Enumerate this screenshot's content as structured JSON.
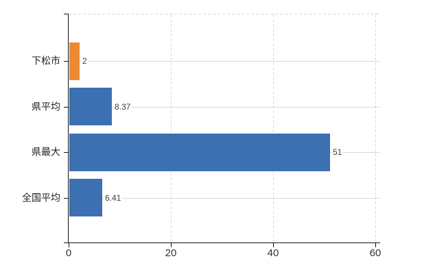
{
  "chart_data": {
    "type": "bar",
    "orientation": "horizontal",
    "title": "",
    "categories": [
      "下松市",
      "県平均",
      "県最大",
      "全国平均"
    ],
    "values": [
      2,
      8.37,
      51,
      6.41
    ],
    "value_labels": [
      "2",
      "8.37",
      "51",
      "6.41"
    ],
    "bar_colors": [
      "#EC8A33",
      "#3D6FB3",
      "#3D6FB3",
      "#3D6FB3"
    ],
    "xlim": [
      0,
      61.2
    ],
    "xticks": [
      0,
      20,
      40,
      60
    ],
    "xtick_labels": [
      "0",
      "20",
      "40",
      "60"
    ],
    "legend": null,
    "layout_hints": {
      "grid_vertical_dashed_at": [
        20,
        40,
        60
      ],
      "grid_horizontal_at_category_centers": true,
      "plot_top_border_dashed": true,
      "highlighted_category": "下松市"
    },
    "colors": {
      "highlight_bar": "#EC8A33",
      "default_bar": "#3D6FB3",
      "grid": "#D2DAD2",
      "axis": "#111111",
      "tick_text": "#333333",
      "category_text": "#1F1F1F",
      "value_text": "#3D3D3D",
      "background": "#FFFFFF"
    }
  }
}
